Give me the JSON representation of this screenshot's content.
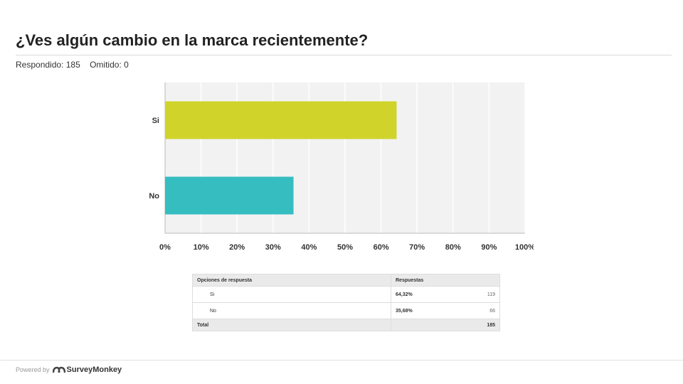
{
  "header": {
    "title": "¿Ves algún cambio en la marca recientemente?",
    "answered": "Respondido: 185",
    "skipped": "Omitido: 0"
  },
  "chart_data": {
    "type": "bar",
    "orientation": "horizontal",
    "categories": [
      "Si",
      "No"
    ],
    "values": [
      64.32,
      35.68
    ],
    "colors": [
      "#d0d42a",
      "#35bdc0"
    ],
    "xlim": [
      0,
      100
    ],
    "xticks": [
      "0%",
      "10%",
      "20%",
      "30%",
      "40%",
      "50%",
      "60%",
      "70%",
      "80%",
      "90%",
      "100%"
    ],
    "grid": true,
    "title": "",
    "xlabel": "",
    "ylabel": ""
  },
  "table": {
    "headers": [
      "Opciones de respuesta",
      "Respuestas"
    ],
    "rows": [
      {
        "option": "Si",
        "percent": "64,32%",
        "count": "119"
      },
      {
        "option": "No",
        "percent": "35,68%",
        "count": "66"
      }
    ],
    "total_label": "Total",
    "total_value": "185"
  },
  "footer": {
    "powered_by": "Powered by",
    "brand": "SurveyMonkey",
    "brand_icon": "surveymonkey-logo-icon"
  }
}
